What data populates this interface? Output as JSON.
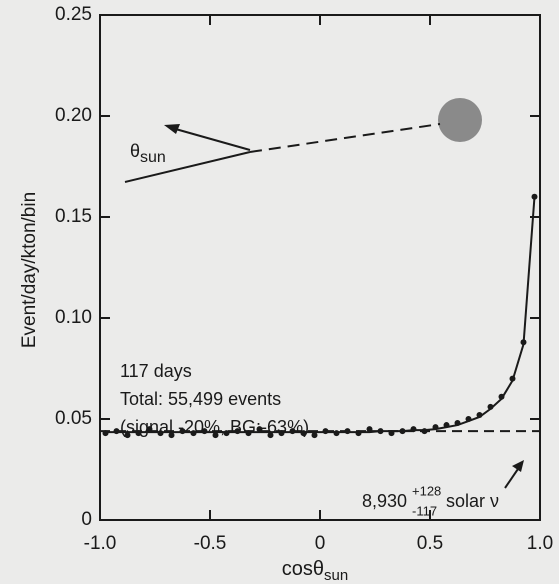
{
  "chart_data": {
    "type": "scatter",
    "ylabel": "Event/day/kton/bin",
    "xlabel": {
      "text": "cosθ",
      "sub": "sun"
    },
    "xlim": [
      -1,
      1
    ],
    "ylim": [
      0,
      0.25
    ],
    "xticks": [
      {
        "value": -1,
        "label": "-1.0"
      },
      -0.5,
      0,
      0.5,
      {
        "value": 1,
        "label": "1.0"
      }
    ],
    "yticks": [
      0,
      0.05,
      {
        "value": 0.1,
        "label": "0.10"
      },
      0.15,
      {
        "value": 0.2,
        "label": "0.20"
      },
      0.25
    ],
    "x": [
      -0.975,
      -0.925,
      -0.875,
      -0.825,
      -0.775,
      -0.725,
      -0.675,
      -0.625,
      -0.575,
      -0.525,
      -0.475,
      -0.425,
      -0.375,
      -0.325,
      -0.275,
      -0.225,
      -0.175,
      -0.125,
      -0.075,
      -0.025,
      0.025,
      0.075,
      0.125,
      0.175,
      0.225,
      0.275,
      0.325,
      0.375,
      0.425,
      0.475,
      0.525,
      0.575,
      0.625,
      0.675,
      0.725,
      0.775,
      0.825,
      0.875,
      0.925,
      0.975
    ],
    "series": [
      {
        "kind": "points",
        "color": "#1a1a1a",
        "values": [
          0.043,
          0.044,
          0.042,
          0.043,
          0.045,
          0.043,
          0.042,
          0.044,
          0.043,
          0.044,
          0.042,
          0.043,
          0.044,
          0.043,
          0.045,
          0.042,
          0.043,
          0.044,
          0.043,
          0.042,
          0.044,
          0.043,
          0.044,
          0.043,
          0.045,
          0.044,
          0.043,
          0.044,
          0.045,
          0.044,
          0.046,
          0.047,
          0.048,
          0.05,
          0.052,
          0.056,
          0.061,
          0.07,
          0.088,
          0.16
        ]
      },
      {
        "kind": "fit",
        "color": "#1a1a1a",
        "values": [
          0.0435,
          0.0435,
          0.0435,
          0.0435,
          0.0435,
          0.0435,
          0.0435,
          0.0435,
          0.0435,
          0.0435,
          0.0435,
          0.0435,
          0.0435,
          0.0435,
          0.0435,
          0.0435,
          0.0435,
          0.0435,
          0.0435,
          0.0435,
          0.0435,
          0.0435,
          0.0435,
          0.0435,
          0.0435,
          0.044,
          0.044,
          0.044,
          0.0445,
          0.0445,
          0.045,
          0.046,
          0.047,
          0.049,
          0.051,
          0.055,
          0.06,
          0.069,
          0.087,
          0.16
        ]
      }
    ],
    "background": 0.044,
    "annotations": {
      "angle": {
        "text": "θ",
        "sub": "sun"
      },
      "days": "117 days",
      "total": "Total: 55,499 events",
      "breakdown": "(signal -20%, BG:-63%)",
      "signal": {
        "text": "8,930",
        "sup": "+128",
        "sub": "-117",
        "label": "solar ν"
      }
    }
  }
}
